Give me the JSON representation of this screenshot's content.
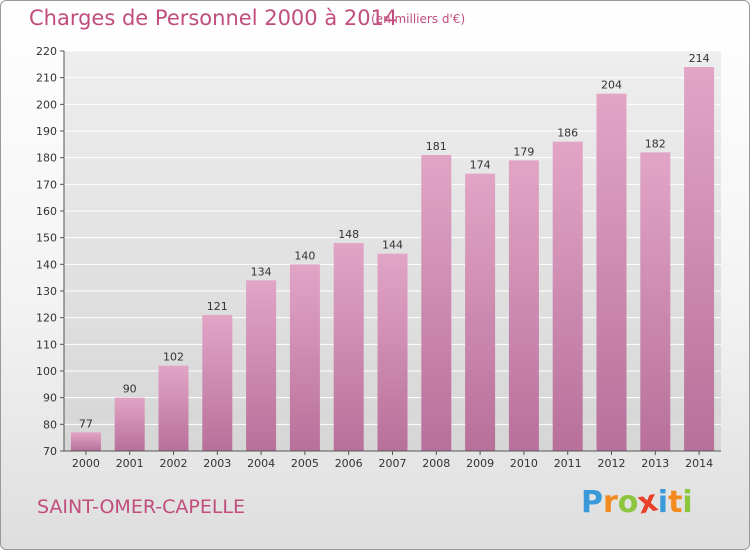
{
  "header": {
    "title": "Charges de Personnel 2000 à 2014",
    "subtitle": "(en milliers d'€)"
  },
  "footer": {
    "town": "SAINT-OMER-CAPELLE",
    "logo": {
      "letters": [
        "P",
        "r",
        "o",
        "x",
        "i",
        "t",
        "i"
      ],
      "colors": [
        "#3a9ad9",
        "#f28a1e",
        "#8cc63f",
        "#e8402a",
        "#3a9ad9",
        "#f28a1e",
        "#8cc63f"
      ]
    }
  },
  "chart_data": {
    "type": "bar",
    "title": "Charges de Personnel 2000 à 2014",
    "subtitle": "(en milliers d'€)",
    "categories": [
      "2000",
      "2001",
      "2002",
      "2003",
      "2004",
      "2005",
      "2006",
      "2007",
      "2008",
      "2009",
      "2010",
      "2011",
      "2012",
      "2013",
      "2014"
    ],
    "values": [
      77,
      90,
      102,
      121,
      134,
      140,
      148,
      144,
      181,
      174,
      179,
      186,
      204,
      182,
      214
    ],
    "ylim": [
      70,
      220
    ],
    "yticks": [
      70,
      80,
      90,
      100,
      110,
      120,
      130,
      140,
      150,
      160,
      170,
      180,
      190,
      200,
      210,
      220
    ],
    "grid": true,
    "bar_color_top": "#e2a5c6",
    "bar_color_bottom": "#b8709a"
  }
}
